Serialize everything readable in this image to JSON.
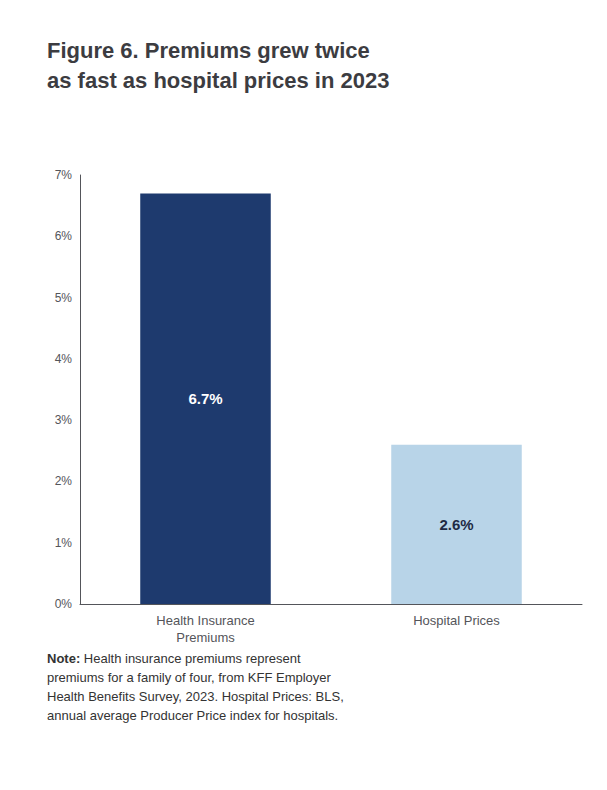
{
  "chart_data": {
    "type": "bar",
    "title": "Figure 6. Premiums grew twice\nas fast as hospital prices in 2023",
    "categories": [
      "Health Insurance\nPremiums",
      "Hospital Prices"
    ],
    "values": [
      6.7,
      2.6
    ],
    "value_labels": [
      "6.7%",
      "2.6%"
    ],
    "data_labels": true,
    "colors": [
      "#1e3a6e",
      "#b8d4e8"
    ],
    "ylim": [
      0,
      7
    ],
    "yticks": [
      {
        "value": 0,
        "label": "0%"
      },
      {
        "value": 1,
        "label": "1%"
      },
      {
        "value": 2,
        "label": "2%"
      },
      {
        "value": 3,
        "label": "3%"
      },
      {
        "value": 4,
        "label": "4%"
      },
      {
        "value": 5,
        "label": "5%"
      },
      {
        "value": 6,
        "label": "6%"
      },
      {
        "value": 7,
        "label": "7%"
      }
    ],
    "grid": false,
    "annotations": [
      "Note: Health insurance premiums represent\npremiums for a family of four, from KFF Employer\nHealth Benefits Survey, 2023. Hospital Prices: BLS,\nannual average Producer Price index for hospitals."
    ]
  }
}
